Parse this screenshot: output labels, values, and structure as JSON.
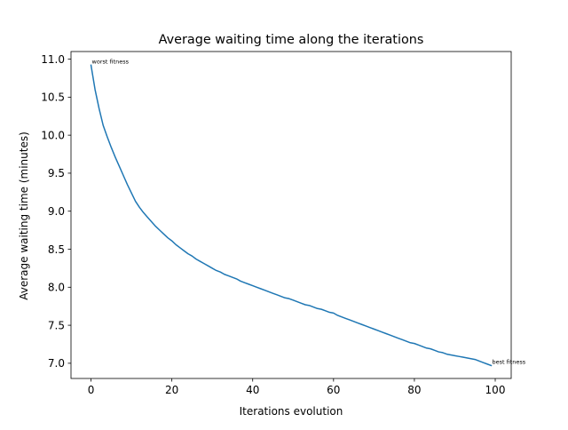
{
  "chart_data": {
    "type": "line",
    "title": "Average waiting time along the iterations",
    "xlabel": "Iterations evolution",
    "ylabel": "Average waiting time (minutes)",
    "xlim": [
      -4.95,
      103.95
    ],
    "ylim": [
      6.8,
      11.1
    ],
    "x_ticks": [
      0,
      20,
      40,
      60,
      80,
      100
    ],
    "y_ticks": [
      7.0,
      7.5,
      8.0,
      8.5,
      9.0,
      9.5,
      10.0,
      10.5,
      11.0
    ],
    "grid": false,
    "line_color": "#1f77b4",
    "series": [
      {
        "x": [
          0,
          1,
          2,
          3,
          4,
          5,
          6,
          7,
          8,
          9,
          10,
          11,
          12,
          13,
          14,
          15,
          16,
          17,
          18,
          19,
          20,
          21,
          22,
          23,
          24,
          25,
          26,
          27,
          28,
          29,
          30,
          31,
          32,
          33,
          34,
          35,
          36,
          37,
          38,
          39,
          40,
          41,
          42,
          43,
          44,
          45,
          46,
          47,
          48,
          49,
          50,
          51,
          52,
          53,
          54,
          55,
          56,
          57,
          58,
          59,
          60,
          61,
          62,
          63,
          64,
          65,
          66,
          67,
          68,
          69,
          70,
          71,
          72,
          73,
          74,
          75,
          76,
          77,
          78,
          79,
          80,
          81,
          82,
          83,
          84,
          85,
          86,
          87,
          88,
          89,
          90,
          91,
          92,
          93,
          94,
          95,
          96,
          97,
          98,
          99
        ],
        "y": [
          10.92,
          10.6,
          10.35,
          10.13,
          9.98,
          9.84,
          9.71,
          9.59,
          9.47,
          9.35,
          9.24,
          9.13,
          9.05,
          8.98,
          8.92,
          8.86,
          8.8,
          8.75,
          8.7,
          8.65,
          8.61,
          8.56,
          8.52,
          8.48,
          8.44,
          8.41,
          8.37,
          8.34,
          8.31,
          8.28,
          8.25,
          8.22,
          8.2,
          8.17,
          8.15,
          8.13,
          8.11,
          8.08,
          8.06,
          8.04,
          8.02,
          8.0,
          7.98,
          7.96,
          7.94,
          7.92,
          7.9,
          7.88,
          7.86,
          7.85,
          7.83,
          7.81,
          7.79,
          7.77,
          7.76,
          7.74,
          7.72,
          7.71,
          7.69,
          7.67,
          7.66,
          7.63,
          7.61,
          7.59,
          7.57,
          7.55,
          7.53,
          7.51,
          7.49,
          7.47,
          7.45,
          7.43,
          7.41,
          7.39,
          7.37,
          7.35,
          7.33,
          7.31,
          7.29,
          7.27,
          7.26,
          7.24,
          7.22,
          7.2,
          7.19,
          7.17,
          7.15,
          7.14,
          7.12,
          7.11,
          7.1,
          7.09,
          7.08,
          7.07,
          7.06,
          7.05,
          7.03,
          7.01,
          6.99,
          6.97
        ]
      }
    ],
    "annotations": [
      {
        "text": "worst fitness",
        "x": 0,
        "y": 10.92
      },
      {
        "text": "best fitness",
        "x": 99,
        "y": 6.97
      }
    ]
  }
}
